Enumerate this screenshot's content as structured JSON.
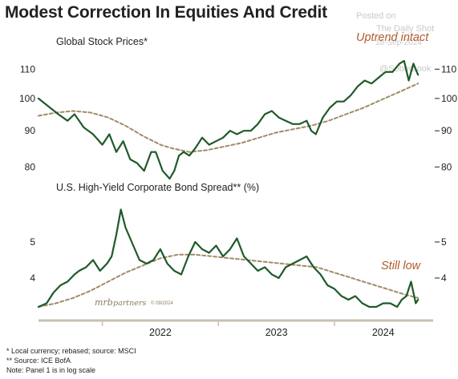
{
  "title": "Modest Correction In Equities And Credit",
  "watermark": {
    "posted_on": "Posted on",
    "source": "The Daily Shot",
    "date": "18-Sep-2024",
    "handle": "@SoberLook"
  },
  "credit": {
    "brand": "mrb",
    "rest": "partners",
    "copyright": "© 09/2024"
  },
  "footnotes": [
    "* Local currency; rebased; source: MSCI",
    "** Source: ICE BofA",
    "Note: Panel 1 is in log scale"
  ],
  "colors": {
    "series": "#1e5a2a",
    "trend": "#a08b68",
    "annotation": "#b05b2c",
    "text": "#222222"
  },
  "x_axis": {
    "tick_labels": [
      "2022",
      "2023",
      "2024"
    ]
  },
  "chart_data": [
    {
      "type": "line",
      "title": "Global Stock Prices*",
      "annotation": "Uptrend intact",
      "scale": "log",
      "ylim": [
        76,
        116
      ],
      "yticks": [
        80,
        90,
        100,
        110
      ],
      "xlim": [
        2021.45,
        2024.85
      ],
      "series": [
        {
          "style": "solid",
          "x": [
            2021.45,
            2021.55,
            2021.62,
            2021.7,
            2021.76,
            2021.84,
            2021.92,
            2022.0,
            2022.06,
            2022.12,
            2022.18,
            2022.24,
            2022.3,
            2022.36,
            2022.42,
            2022.46,
            2022.52,
            2022.58,
            2022.62,
            2022.66,
            2022.7,
            2022.75,
            2022.8,
            2022.86,
            2022.92,
            2022.98,
            2023.04,
            2023.1,
            2023.16,
            2023.22,
            2023.28,
            2023.34,
            2023.4,
            2023.46,
            2023.52,
            2023.58,
            2023.64,
            2023.7,
            2023.76,
            2023.8,
            2023.84,
            2023.9,
            2023.96,
            2024.02,
            2024.08,
            2024.14,
            2024.2,
            2024.26,
            2024.32,
            2024.38,
            2024.44,
            2024.5,
            2024.56,
            2024.6,
            2024.64,
            2024.68,
            2024.72
          ],
          "y": [
            100,
            97,
            95,
            93,
            95,
            91,
            89,
            86,
            89,
            84,
            87,
            82,
            81,
            79,
            84,
            84,
            79,
            77,
            79,
            83,
            84,
            83,
            85,
            88,
            86,
            87,
            88,
            90,
            89,
            90,
            90,
            92,
            95,
            96,
            94,
            93,
            92,
            92,
            93,
            90,
            89,
            94,
            97,
            99,
            99,
            101,
            104,
            106,
            105,
            107,
            109,
            109,
            112,
            113,
            106,
            112,
            108
          ]
        },
        {
          "style": "dashed",
          "x": [
            2021.45,
            2021.6,
            2021.75,
            2021.9,
            2022.05,
            2022.2,
            2022.35,
            2022.5,
            2022.6,
            2022.75,
            2022.9,
            2023.05,
            2023.2,
            2023.35,
            2023.5,
            2023.65,
            2023.8,
            2023.95,
            2024.1,
            2024.25,
            2024.4,
            2024.55,
            2024.72
          ],
          "y": [
            94.5,
            95.5,
            96,
            95.5,
            94,
            91.5,
            88.5,
            86,
            85,
            84,
            84.5,
            85.5,
            86.5,
            88,
            89.5,
            90.5,
            91.5,
            93,
            95,
            97,
            99.5,
            102,
            105
          ]
        }
      ]
    },
    {
      "type": "line",
      "title": "U.S. High-Yield Corporate Bond Spread** (%)",
      "annotation": "Still low",
      "ylim": [
        3.0,
        6.2
      ],
      "yticks": [
        4,
        5
      ],
      "xlim": [
        2021.45,
        2024.85
      ],
      "series": [
        {
          "style": "solid",
          "x": [
            2021.45,
            2021.52,
            2021.58,
            2021.64,
            2021.7,
            2021.76,
            2021.8,
            2021.86,
            2021.92,
            2021.98,
            2022.04,
            2022.08,
            2022.12,
            2022.16,
            2022.2,
            2022.24,
            2022.28,
            2022.32,
            2022.38,
            2022.44,
            2022.5,
            2022.56,
            2022.62,
            2022.68,
            2022.74,
            2022.8,
            2022.86,
            2022.92,
            2022.98,
            2023.04,
            2023.1,
            2023.16,
            2023.22,
            2023.28,
            2023.34,
            2023.4,
            2023.46,
            2023.52,
            2023.58,
            2023.64,
            2023.7,
            2023.76,
            2023.82,
            2023.88,
            2023.94,
            2024.0,
            2024.06,
            2024.12,
            2024.18,
            2024.24,
            2024.3,
            2024.36,
            2024.42,
            2024.48,
            2024.54,
            2024.58,
            2024.62,
            2024.66,
            2024.7,
            2024.72
          ],
          "y": [
            3.2,
            3.3,
            3.6,
            3.8,
            3.9,
            4.1,
            4.2,
            4.3,
            4.5,
            4.2,
            4.4,
            4.6,
            5.2,
            5.9,
            5.4,
            5.1,
            4.8,
            4.5,
            4.4,
            4.5,
            4.8,
            4.4,
            4.2,
            4.1,
            4.6,
            5.0,
            4.8,
            4.7,
            4.9,
            4.6,
            4.8,
            5.1,
            4.6,
            4.4,
            4.2,
            4.3,
            4.1,
            4.0,
            4.3,
            4.4,
            4.5,
            4.6,
            4.3,
            4.1,
            3.8,
            3.7,
            3.5,
            3.4,
            3.5,
            3.3,
            3.2,
            3.2,
            3.3,
            3.3,
            3.2,
            3.4,
            3.5,
            3.9,
            3.3,
            3.4
          ]
        },
        {
          "style": "dashed",
          "x": [
            2021.45,
            2021.6,
            2021.75,
            2021.9,
            2022.05,
            2022.2,
            2022.35,
            2022.5,
            2022.65,
            2022.8,
            2022.95,
            2023.1,
            2023.25,
            2023.4,
            2023.55,
            2023.7,
            2023.85,
            2024.0,
            2024.15,
            2024.3,
            2024.45,
            2024.6,
            2024.72
          ],
          "y": [
            3.2,
            3.3,
            3.45,
            3.65,
            3.9,
            4.15,
            4.35,
            4.55,
            4.65,
            4.65,
            4.6,
            4.55,
            4.5,
            4.45,
            4.4,
            4.35,
            4.3,
            4.15,
            4.0,
            3.85,
            3.7,
            3.55,
            3.45
          ]
        }
      ]
    }
  ]
}
